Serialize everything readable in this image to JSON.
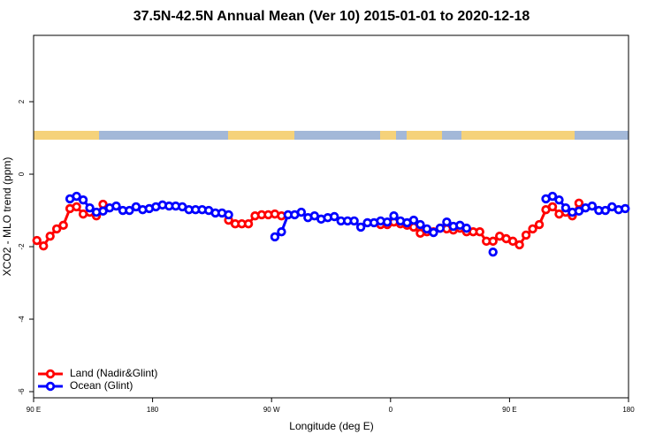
{
  "chart_data": {
    "type": "line",
    "title": "37.5N-42.5N Annual Mean (Ver 10)   2015-01-01 to 2020-12-18",
    "xlabel": "Longitude (deg E)",
    "ylabel": "XCO2 - MLO trend (ppm)",
    "x": [
      92.5,
      97.5,
      102.5,
      107.5,
      112.5,
      117.5,
      122.5,
      127.5,
      132.5,
      137.5,
      142.5,
      147.5,
      152.5,
      157.5,
      162.5,
      167.5,
      172.5,
      177.5,
      182.5,
      187.5,
      192.5,
      197.5,
      202.5,
      207.5,
      212.5,
      217.5,
      222.5,
      227.5,
      232.5,
      237.5,
      242.5,
      247.5,
      252.5,
      257.5,
      262.5,
      267.5,
      272.5,
      277.5,
      282.5,
      287.5,
      292.5,
      297.5,
      302.5,
      307.5,
      312.5,
      317.5,
      322.5,
      327.5,
      332.5,
      337.5,
      342.5,
      347.5,
      352.5,
      357.5,
      362.5,
      367.5,
      372.5,
      377.5,
      382.5,
      387.5,
      392.5,
      397.5,
      402.5,
      407.5,
      412.5,
      417.5,
      422.5,
      427.5,
      432.5,
      437.5,
      442.5,
      447.5,
      452.5,
      457.5,
      462.5,
      467.5,
      472.5,
      477.5,
      482.5,
      487.5,
      492.5,
      497.5,
      502.5,
      507.5,
      512.5,
      517.5,
      522.5,
      527.5,
      532.5,
      537.5
    ],
    "series": [
      {
        "name": "Land (Nadir&Glint)",
        "color": "#ff0000",
        "values": [
          -1.83,
          -1.98,
          -1.71,
          -1.51,
          -1.41,
          -0.95,
          -0.9,
          -1.1,
          -1.05,
          -1.15,
          -0.83,
          null,
          null,
          null,
          null,
          null,
          null,
          null,
          null,
          null,
          null,
          null,
          null,
          null,
          null,
          null,
          null,
          null,
          null,
          -1.27,
          -1.37,
          -1.37,
          -1.37,
          -1.15,
          -1.12,
          -1.12,
          -1.1,
          -1.15,
          null,
          null,
          null,
          null,
          null,
          null,
          null,
          null,
          null,
          null,
          null,
          null,
          null,
          null,
          -1.39,
          -1.39,
          -1.32,
          -1.37,
          -1.41,
          -1.46,
          -1.63,
          -1.59,
          -1.59,
          -1.49,
          -1.51,
          -1.54,
          -1.49,
          -1.59,
          -1.59,
          -1.59,
          -1.85,
          -1.85,
          -1.71,
          -1.78,
          -1.85,
          -1.95,
          -1.68,
          -1.51,
          -1.39,
          -0.98,
          -0.9,
          -1.1,
          -1.05,
          -1.15,
          -0.8,
          null,
          null,
          null,
          null,
          null,
          null,
          null
        ]
      },
      {
        "name": "Ocean (Glint)",
        "color": "#0000ff",
        "values": [
          null,
          null,
          null,
          null,
          null,
          -0.68,
          -0.61,
          -0.71,
          -0.93,
          -1.05,
          -1.02,
          -0.93,
          -0.88,
          -1.0,
          -1.0,
          -0.9,
          -0.98,
          -0.95,
          -0.9,
          -0.85,
          -0.88,
          -0.88,
          -0.9,
          -0.98,
          -0.98,
          -0.98,
          -1.0,
          -1.07,
          -1.07,
          -1.12,
          null,
          null,
          null,
          null,
          null,
          null,
          -1.73,
          -1.59,
          -1.12,
          -1.12,
          -1.05,
          -1.2,
          -1.15,
          -1.24,
          -1.2,
          -1.17,
          -1.29,
          -1.29,
          -1.29,
          -1.46,
          -1.34,
          -1.34,
          -1.29,
          -1.32,
          -1.15,
          -1.29,
          -1.34,
          -1.27,
          -1.39,
          -1.51,
          -1.61,
          -1.49,
          -1.32,
          -1.44,
          -1.41,
          -1.49,
          null,
          null,
          null,
          -2.15,
          null,
          null,
          null,
          null,
          null,
          null,
          null,
          -0.68,
          -0.61,
          -0.71,
          -0.93,
          -1.05,
          -1.02,
          -0.93,
          -0.88,
          -1.0,
          -1.0,
          -0.9,
          -0.98,
          -0.95
        ]
      }
    ],
    "xlim": [
      90,
      540
    ],
    "xticks": [
      {
        "value": 90,
        "label": "90 E"
      },
      180,
      {
        "value": 270,
        "label": "90 W"
      },
      {
        "value": 360,
        "label": "0"
      },
      {
        "value": 450,
        "label": "90 E"
      },
      {
        "value": 540,
        "label": "180"
      }
    ],
    "ylim": [
      -6.17,
      3.83
    ],
    "yticks": [
      -6,
      -4,
      -2,
      0,
      2
    ],
    "legend": "bottom-left"
  }
}
